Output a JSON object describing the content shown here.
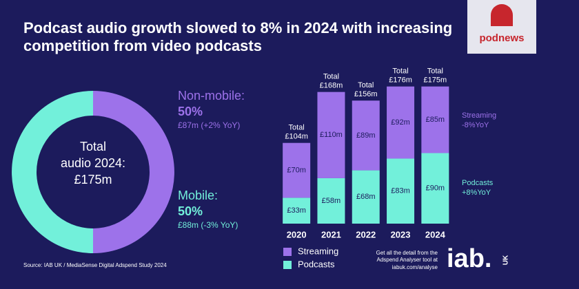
{
  "title": [
    "Podcast audio growth slowed to 8% in 2024 with increasing",
    "competition from video podcasts"
  ],
  "source": "Source: IAB UK / MediaSense Digital Adspend Study 2024",
  "note": [
    "Get all the detail from the",
    "Adspend Analyser tool at",
    "iabuk.com/analyse"
  ],
  "logo_podnews": "podnews",
  "logo_iab": "iab.",
  "logo_iab_sub": "UK",
  "chart_data": [
    {
      "type": "donut",
      "categories": [
        "Non-mobile:",
        "Mobile:"
      ],
      "values": [
        50,
        50
      ],
      "value_labels": [
        "50%",
        "50%"
      ],
      "details": [
        "£87m (+2% YoY)",
        "£88m (-3% YoY)"
      ],
      "colors": [
        "#9d72ea",
        "#72f0da"
      ],
      "center_label": [
        "Total",
        "audio 2024:",
        "£175m"
      ]
    },
    {
      "type": "stacked_bar",
      "categories": [
        "2020",
        "2021",
        "2022",
        "2023",
        "2024"
      ],
      "ylim": [
        0,
        180
      ],
      "series": [
        {
          "name": "Podcasts",
          "color": "#72f0da",
          "values": [
            33,
            58,
            68,
            83,
            90
          ],
          "value_labels": [
            "£33m",
            "£58m",
            "£68m",
            "£83m",
            "£90m"
          ],
          "side_label": [
            "Podcasts",
            "+8%YoY"
          ]
        },
        {
          "name": "Streaming",
          "color": "#9d72ea",
          "values": [
            70,
            110,
            89,
            92,
            85
          ],
          "value_labels": [
            "£70m",
            "£110m",
            "£89m",
            "£92m",
            "£85m"
          ],
          "side_label": [
            "Streaming",
            "-8%YoY"
          ]
        }
      ],
      "total_labels": [
        [
          "Total",
          "£104m"
        ],
        [
          "Total",
          "£168m"
        ],
        [
          "Total",
          "£156m"
        ],
        [
          "Total",
          "£176m"
        ],
        [
          "Total",
          "£175m"
        ]
      ],
      "legend": [
        "Streaming",
        "Podcasts"
      ]
    }
  ]
}
